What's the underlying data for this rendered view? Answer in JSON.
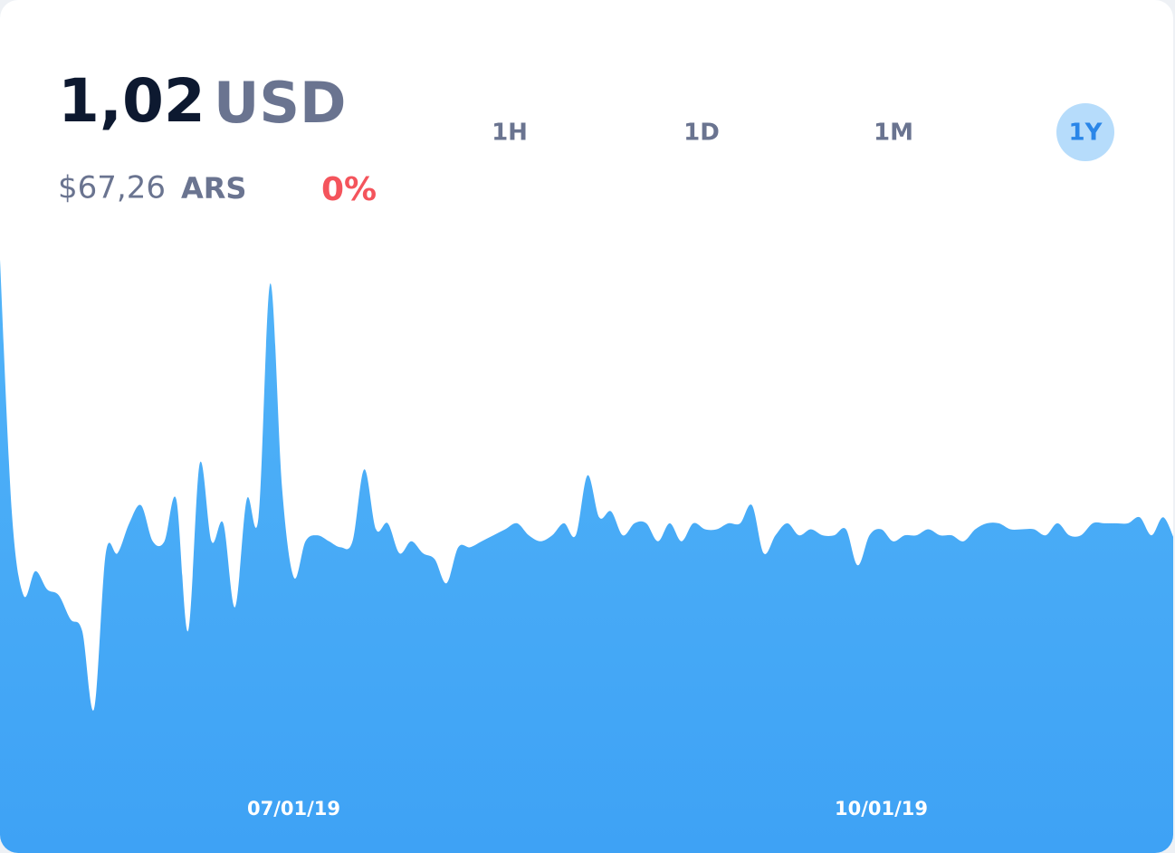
{
  "header": {
    "price": "1,02",
    "currency": "USD",
    "local_price": "$67,26",
    "local_currency": "ARS",
    "change": "0%"
  },
  "ranges": [
    "1H",
    "1D",
    "1M",
    "1Y"
  ],
  "active_range": 3,
  "chart_data": {
    "type": "area",
    "categories": [
      null,
      null,
      null,
      null,
      null,
      null,
      null,
      null,
      null,
      null,
      null,
      null,
      null,
      null,
      null,
      null,
      null,
      null,
      null,
      null,
      null,
      null,
      null,
      null,
      null,
      "07/01/19",
      null,
      null,
      null,
      null,
      null,
      null,
      null,
      null,
      null,
      null,
      null,
      null,
      null,
      null,
      null,
      null,
      null,
      null,
      null,
      null,
      null,
      null,
      null,
      null,
      null,
      null,
      null,
      null,
      null,
      null,
      null,
      null,
      null,
      null,
      null,
      null,
      null,
      null,
      null,
      null,
      null,
      null,
      null,
      null,
      null,
      null,
      null,
      null,
      null,
      "10/01/19",
      null,
      null,
      null,
      null,
      null,
      null,
      null,
      null,
      null,
      null,
      null,
      null,
      null,
      null,
      null,
      null,
      null,
      null,
      null,
      null,
      null,
      null,
      null,
      null,
      null
    ],
    "values": [
      99,
      57,
      43,
      47,
      44,
      43,
      39,
      37,
      24,
      50,
      50,
      55,
      58,
      52,
      52,
      59,
      37,
      65,
      52,
      55,
      41,
      59,
      56,
      95,
      61,
      46,
      52,
      53,
      52,
      51,
      52,
      64,
      54,
      55,
      50,
      52,
      50,
      49,
      45,
      51,
      51,
      52,
      53,
      54,
      55,
      53,
      52,
      53,
      55,
      53,
      63,
      56,
      57,
      53,
      55,
      55,
      52,
      55,
      52,
      55,
      54,
      54,
      55,
      55,
      58,
      50,
      53,
      55,
      53,
      54,
      53,
      53,
      54,
      48,
      53,
      54,
      52,
      53,
      53,
      54,
      53,
      53,
      52,
      54,
      55,
      55,
      54,
      54,
      54,
      53,
      55,
      53,
      53,
      55,
      55,
      55,
      55,
      56,
      53,
      56,
      52
    ],
    "color": "#46aaf7",
    "ylim": [
      0,
      100
    ]
  }
}
